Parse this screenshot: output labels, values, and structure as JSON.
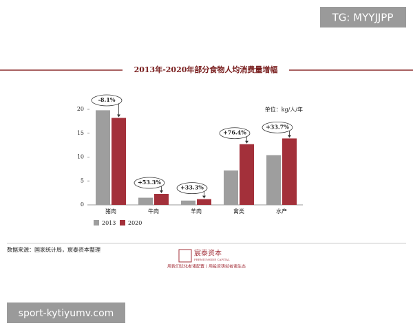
{
  "watermark": "TG: MYYJJPP",
  "chart_data": {
    "type": "bar",
    "title": "2013年-2020年部分食物人均消费量增幅",
    "unit": "单位：kg/人/年",
    "categories": [
      "猪肉",
      "牛肉",
      "羊肉",
      "禽类",
      "水产"
    ],
    "series": [
      {
        "name": "2013",
        "color": "#9e9e9e",
        "values": [
          19.8,
          1.5,
          0.9,
          7.2,
          10.4
        ]
      },
      {
        "name": "2020",
        "color": "#a3303a",
        "values": [
          18.2,
          2.3,
          1.2,
          12.7,
          13.9
        ]
      }
    ],
    "annotations": [
      "-8.1%",
      "+53.3%",
      "+33.3%",
      "+76.4%",
      "+33.7%"
    ],
    "ylim": [
      0,
      20
    ],
    "yticks": [
      0,
      5,
      10,
      15,
      20
    ]
  },
  "footer": {
    "source": "数据来源：国家统计局，宸泰资本整理",
    "logo_name": "宸泰资本",
    "logo_sub": "PREMIUMSIDE CAPITAL",
    "slogan": "用我们优化者诸配置丨用投资铸就者诸生态"
  },
  "site_label": "sport-kytiyumv.com"
}
